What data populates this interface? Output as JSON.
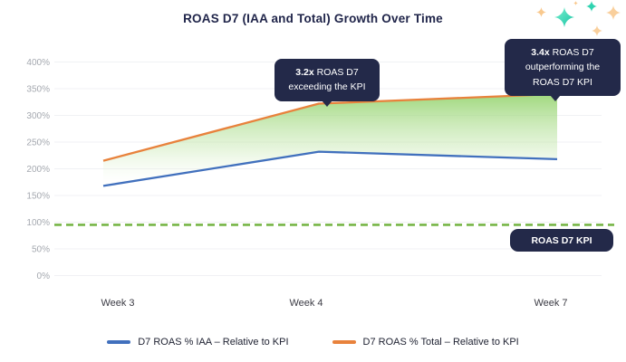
{
  "title": "ROAS D7 (IAA and Total) Growth Over Time",
  "chart_data": {
    "type": "line",
    "categories": [
      "Week 3",
      "Week 4",
      "Week 7"
    ],
    "series": [
      {
        "name": "D7 ROAS % IAA – Relative to KPI",
        "values": [
          168,
          232,
          218
        ],
        "color": "#4170bd"
      },
      {
        "name": "D7 ROAS % Total – Relative to KPI",
        "values": [
          215,
          322,
          340
        ],
        "color": "#e8823c"
      }
    ],
    "kpi_line": {
      "label": "ROAS D7 KPI",
      "value": 95,
      "color": "#77b547",
      "style": "dashed"
    },
    "yticks": [
      0,
      50,
      100,
      150,
      200,
      250,
      300,
      350,
      400
    ],
    "ytick_suffix": "%",
    "ylim": [
      0,
      420
    ],
    "grid": "horizontal",
    "legend_position": "bottom",
    "area_fill": "green vertical gradient between Total and IAA lines",
    "area_gradient": {
      "top": "#8fd167",
      "mid": "#c9e9b4",
      "bottom": "#ffffff"
    }
  },
  "annotations": [
    {
      "bold": "3.2x",
      "text": " ROAS D7 exceeding the KPI",
      "anchor": "Week 4 Total point"
    },
    {
      "bold": "3.4x",
      "text": " ROAS D7 outperforming the ROAS D7 KPI",
      "anchor": "Week 7 Total point"
    }
  ],
  "kpi_badge_label": "ROAS D7 KPI",
  "colors": {
    "navy": "#232949",
    "title_text": "#20254a",
    "gridline": "#f0f1f4",
    "y_tick_text": "#a4a8af",
    "x_tick_text": "#3b3b44",
    "sparkle_teal": "#1fc9a7",
    "sparkle_peach": "#f9c98e"
  },
  "decor": {
    "sparkle_icons": [
      {
        "name": "sparkle-icon",
        "color": "peach",
        "size": "small"
      },
      {
        "name": "sparkle-icon",
        "color": "teal",
        "size": "large"
      },
      {
        "name": "sparkle-icon",
        "color": "peach",
        "size": "tiny"
      },
      {
        "name": "sparkle-icon",
        "color": "teal",
        "size": "small"
      },
      {
        "name": "sparkle-icon",
        "color": "peach",
        "size": "medium"
      },
      {
        "name": "sparkle-icon",
        "color": "peach",
        "size": "small"
      }
    ]
  }
}
